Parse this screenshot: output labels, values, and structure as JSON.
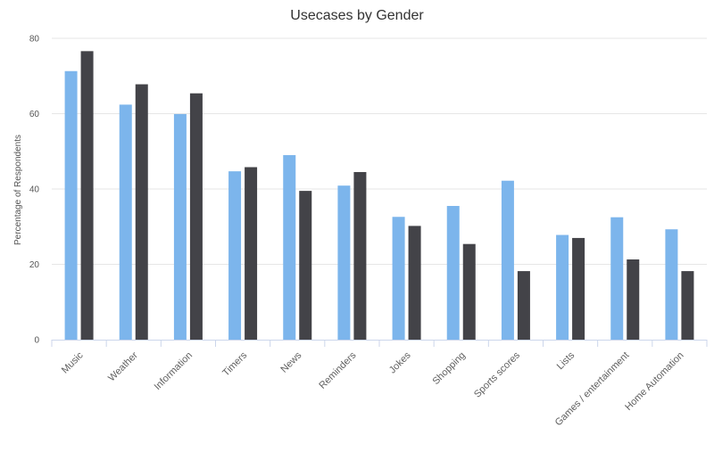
{
  "chart_data": {
    "type": "bar",
    "title": "Usecases by Gender",
    "xlabel": "",
    "ylabel": "Percentage of Respondents",
    "ylim": [
      0,
      80
    ],
    "yticks": [
      0,
      20,
      40,
      60,
      80
    ],
    "grid": true,
    "legend": "none",
    "categories": [
      "Music",
      "Weather",
      "Information",
      "Timers",
      "News",
      "Reminders",
      "Jokes",
      "Shopping",
      "Sports scores",
      "Lists",
      "Games / entertainment",
      "Home Automation"
    ],
    "series": [
      {
        "color": "#7cb5ec",
        "values": [
          71.3,
          62.4,
          59.9,
          44.7,
          49.0,
          40.9,
          32.6,
          35.5,
          42.2,
          27.8,
          32.5,
          29.3
        ]
      },
      {
        "color": "#434348",
        "values": [
          76.6,
          67.8,
          65.4,
          45.8,
          39.5,
          44.5,
          30.2,
          25.4,
          18.2,
          27.0,
          21.3,
          18.2
        ]
      }
    ]
  }
}
